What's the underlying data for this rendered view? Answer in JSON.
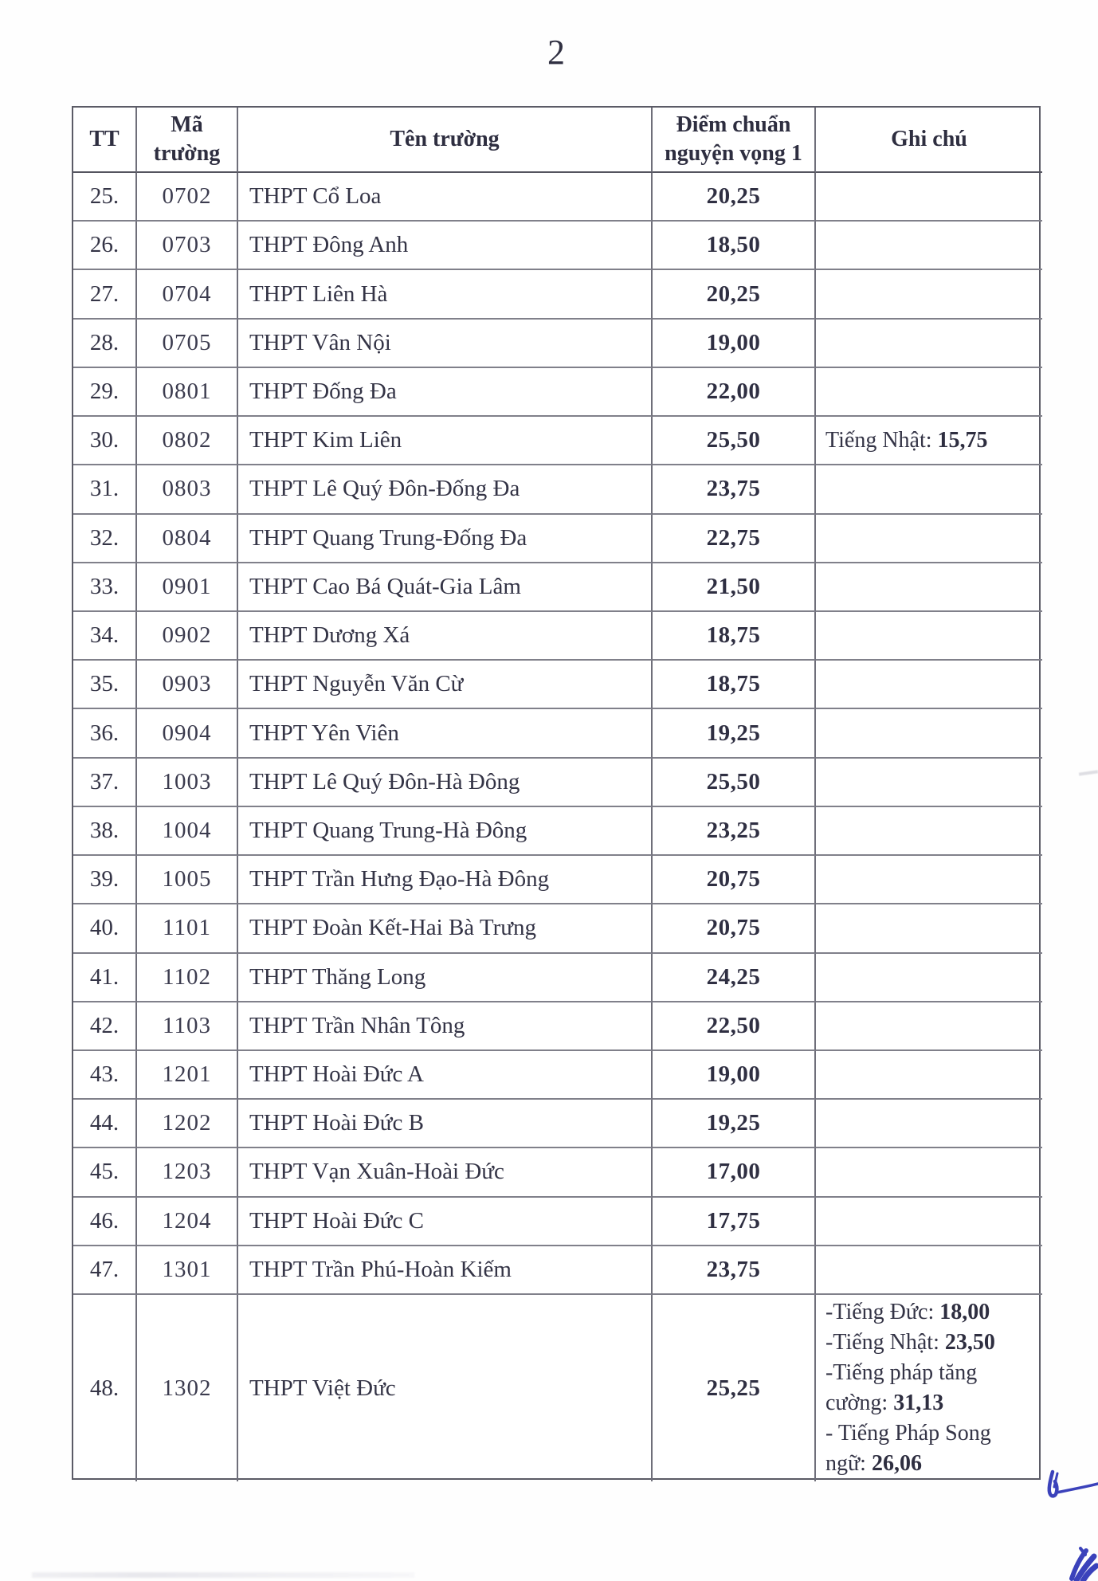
{
  "page": {
    "number": "2"
  },
  "table": {
    "columns": [
      "TT",
      "Mã trường",
      "Tên trường",
      "Điểm chuẩn nguyện vọng 1",
      "Ghi chú"
    ],
    "rows": [
      {
        "tt": "25.",
        "code": "0702",
        "name": "THPT Cổ Loa",
        "score": "20,25",
        "notes": []
      },
      {
        "tt": "26.",
        "code": "0703",
        "name": "THPT Đông Anh",
        "score": "18,50",
        "notes": []
      },
      {
        "tt": "27.",
        "code": "0704",
        "name": "THPT Liên Hà",
        "score": "20,25",
        "notes": []
      },
      {
        "tt": "28.",
        "code": "0705",
        "name": "THPT Vân Nội",
        "score": "19,00",
        "notes": []
      },
      {
        "tt": "29.",
        "code": "0801",
        "name": "THPT Đống Đa",
        "score": "22,00",
        "notes": []
      },
      {
        "tt": "30.",
        "code": "0802",
        "name": "THPT Kim Liên",
        "score": "25,50",
        "notes": [
          {
            "label": "Tiếng Nhật: ",
            "value": "15,75"
          }
        ]
      },
      {
        "tt": "31.",
        "code": "0803",
        "name": "THPT Lê Quý Đôn-Đống Đa",
        "score": "23,75",
        "notes": []
      },
      {
        "tt": "32.",
        "code": "0804",
        "name": "THPT Quang Trung-Đống Đa",
        "score": "22,75",
        "notes": []
      },
      {
        "tt": "33.",
        "code": "0901",
        "name": "THPT Cao Bá Quát-Gia Lâm",
        "score": "21,50",
        "notes": []
      },
      {
        "tt": "34.",
        "code": "0902",
        "name": "THPT Dương Xá",
        "score": "18,75",
        "notes": []
      },
      {
        "tt": "35.",
        "code": "0903",
        "name": "THPT Nguyễn Văn Cừ",
        "score": "18,75",
        "notes": []
      },
      {
        "tt": "36.",
        "code": "0904",
        "name": "THPT Yên Viên",
        "score": "19,25",
        "notes": []
      },
      {
        "tt": "37.",
        "code": "1003",
        "name": "THPT Lê Quý Đôn-Hà Đông",
        "score": "25,50",
        "notes": []
      },
      {
        "tt": "38.",
        "code": "1004",
        "name": "THPT Quang Trung-Hà Đông",
        "score": "23,25",
        "notes": []
      },
      {
        "tt": "39.",
        "code": "1005",
        "name": "THPT Trần Hưng Đạo-Hà Đông",
        "score": "20,75",
        "notes": []
      },
      {
        "tt": "40.",
        "code": "1101",
        "name": "THPT Đoàn Kết-Hai Bà Trưng",
        "score": "20,75",
        "notes": []
      },
      {
        "tt": "41.",
        "code": "1102",
        "name": "THPT Thăng Long",
        "score": "24,25",
        "notes": []
      },
      {
        "tt": "42.",
        "code": "1103",
        "name": "THPT Trần Nhân Tông",
        "score": "22,50",
        "notes": []
      },
      {
        "tt": "43.",
        "code": "1201",
        "name": "THPT Hoài Đức A",
        "score": "19,00",
        "notes": []
      },
      {
        "tt": "44.",
        "code": "1202",
        "name": "THPT Hoài Đức B",
        "score": "19,25",
        "notes": []
      },
      {
        "tt": "45.",
        "code": "1203",
        "name": "THPT Vạn Xuân-Hoài Đức",
        "score": "17,00",
        "notes": []
      },
      {
        "tt": "46.",
        "code": "1204",
        "name": "THPT Hoài Đức C",
        "score": "17,75",
        "notes": []
      },
      {
        "tt": "47.",
        "code": "1301",
        "name": "THPT Trần Phú-Hoàn Kiếm",
        "score": "23,75",
        "notes": []
      },
      {
        "tt": "48.",
        "code": "1302",
        "name": "THPT Việt Đức",
        "score": "25,25",
        "notes": [
          {
            "label": "-Tiếng Đức: ",
            "value": "18,00"
          },
          {
            "label": "-Tiếng Nhật: ",
            "value": "23,50"
          },
          {
            "label": "-Tiếng pháp tăng cường: ",
            "value": "31,13"
          },
          {
            "label": "- Tiếng Pháp Song ngữ: ",
            "value": "26,06"
          }
        ]
      }
    ]
  },
  "annotations": {
    "pen_color": "#3b42bb",
    "pen_marks": [
      "checkmark-with-tail",
      "ink-scribble"
    ]
  }
}
